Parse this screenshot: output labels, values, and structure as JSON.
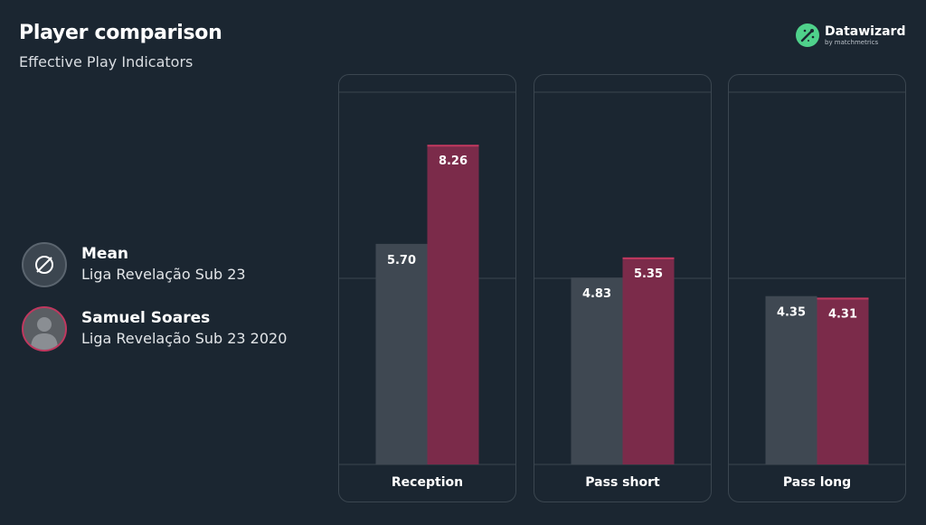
{
  "header": {
    "title": "Player comparison",
    "subtitle": "Effective Play Indicators"
  },
  "brand": {
    "name": "Datawizard",
    "tagline": "by matchmetrics",
    "logo_icon": "datawizard-logo-icon",
    "color": "#4fd18b"
  },
  "legend": [
    {
      "name": "Mean",
      "competition": "Liga Revelação Sub 23",
      "icon": "empty-set-icon",
      "color": "#3f4852"
    },
    {
      "name": "Samuel Soares",
      "competition": "Liga Revelação Sub 23 2020",
      "icon": "player-avatar-icon",
      "color": "#7b2b4a"
    }
  ],
  "chart_data": {
    "type": "bar",
    "categories": [
      "Reception",
      "Pass short",
      "Pass long"
    ],
    "series": [
      {
        "name": "Mean",
        "values": [
          5.7,
          4.83,
          4.35
        ],
        "color": "#3f4852"
      },
      {
        "name": "Samuel Soares",
        "values": [
          8.26,
          5.35,
          4.31
        ],
        "color": "#7b2b4a",
        "accent": "#c0385f"
      }
    ],
    "value_labels": [
      [
        "5.70",
        "4.83",
        "4.35"
      ],
      [
        "8.26",
        "5.35",
        "4.31"
      ]
    ],
    "ylim": [
      0,
      9.62
    ],
    "gridlines": [
      4.81,
      9.62
    ],
    "grid": true,
    "legend": "left"
  }
}
